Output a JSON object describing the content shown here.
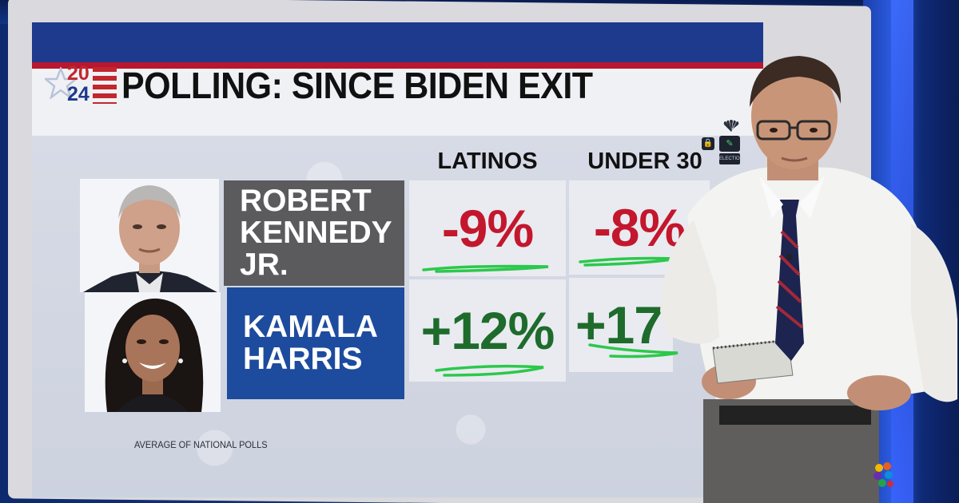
{
  "logo": {
    "year_top": "20",
    "year_bottom": "24"
  },
  "title": "POLLING: SINCE BIDEN EXIT",
  "columns": [
    "LATINOS",
    "UNDER 30"
  ],
  "rows": [
    {
      "name_line1": "ROBERT",
      "name_line2": "KENNEDY JR.",
      "values": [
        "-9%",
        "-8%"
      ]
    },
    {
      "name_line1": "KAMALA",
      "name_line2": "HARRIS",
      "values": [
        "+12%",
        "+17"
      ]
    }
  ],
  "footnote": "AVERAGE OF NATIONAL POLLS",
  "icons": [
    "nbc-peacock-icon",
    "lock-icon",
    "pen-icon",
    "election-icon"
  ],
  "election_label": "ELECTION",
  "colors": {
    "negative": "#c3172d",
    "positive": "#1e6b2c",
    "kennedy_cell": "#5b5b5e",
    "harris_cell": "#1d4b9e",
    "underline": "#2cc84b"
  }
}
